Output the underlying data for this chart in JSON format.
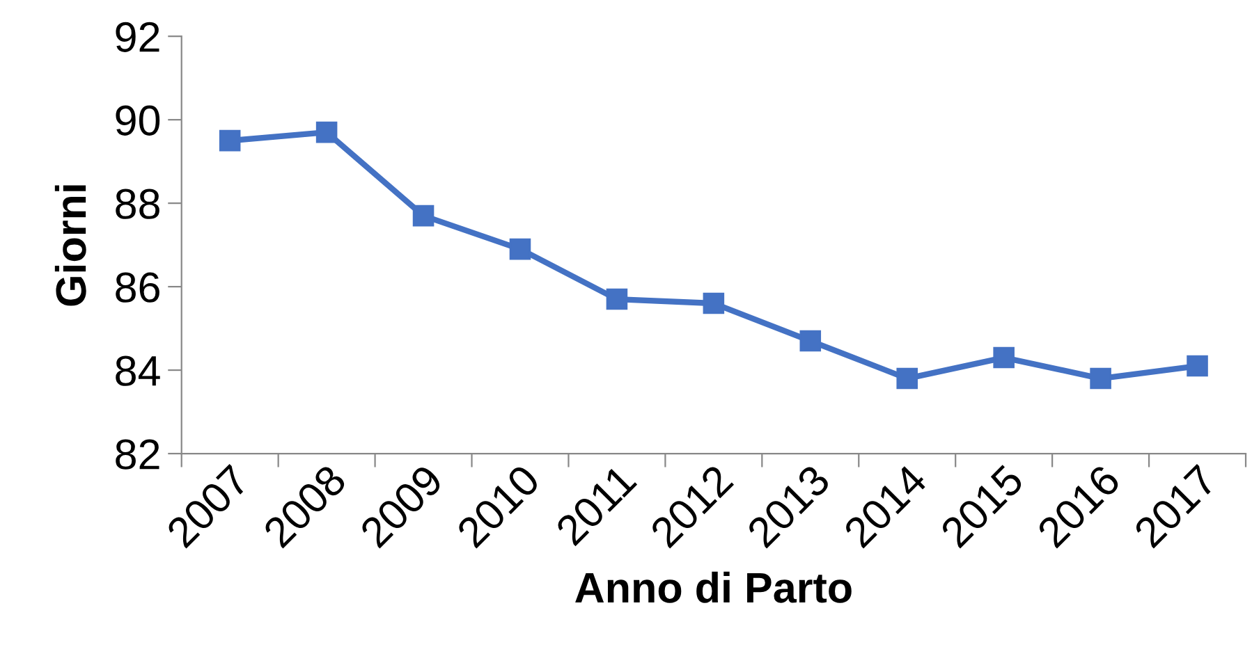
{
  "chart_data": {
    "type": "line",
    "xlabel": "Anno di Parto",
    "ylabel": "Giorni",
    "categories": [
      "2007",
      "2008",
      "2009",
      "2010",
      "2011",
      "2012",
      "2013",
      "2014",
      "2015",
      "2016",
      "2017"
    ],
    "series": [
      {
        "color": "#4472c4",
        "values": [
          89.5,
          89.7,
          87.7,
          86.9,
          85.7,
          85.6,
          84.7,
          83.8,
          84.3,
          83.8,
          84.1
        ]
      }
    ],
    "ylim": [
      82,
      92
    ],
    "yticks": [
      82,
      84,
      86,
      88,
      90,
      92
    ],
    "marker": "square",
    "line_style": "solid",
    "grid": false,
    "legend": false
  }
}
